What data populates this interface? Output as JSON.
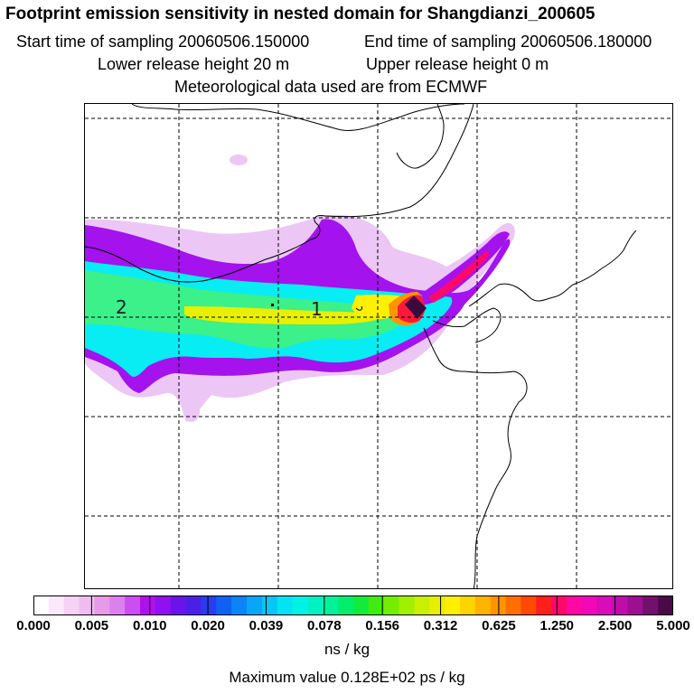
{
  "header": {
    "title": "Footprint emission sensitivity in nested domain for Shangdianzi_200605",
    "start_time": "Start time of sampling 20060506.150000",
    "end_time": "End time of sampling 20060506.180000",
    "lower_height": "Lower release height   20 m",
    "upper_height": "Upper release height    0 m",
    "met_data": "Meteorological data used are from ECMWF"
  },
  "map": {
    "labels": [
      "2",
      "1"
    ]
  },
  "colorbar": {
    "ticks": [
      "0.000",
      "0.005",
      "0.010",
      "0.020",
      "0.039",
      "0.078",
      "0.156",
      "0.312",
      "0.625",
      "1.250",
      "2.500",
      "5.000"
    ],
    "colors": [
      "#ffffff",
      "#fbe8fb",
      "#f6d2f6",
      "#f0bcf0",
      "#e79ae7",
      "#dc80ee",
      "#cc4df2",
      "#b010ec",
      "#9010f0",
      "#6a14ea",
      "#4a20e8",
      "#2a3cf0",
      "#1060f4",
      "#0a84f6",
      "#08a6f6",
      "#06c6f6",
      "#00e4f4",
      "#00f2e6",
      "#00f2c2",
      "#00f29a",
      "#00ee6c",
      "#10ec3c",
      "#40ec10",
      "#74ee00",
      "#a0f000",
      "#c8f000",
      "#e8ee00",
      "#fff000",
      "#ffd400",
      "#ffb400",
      "#ff9400",
      "#ff7000",
      "#ff4a00",
      "#ff1e1e",
      "#ff0a6a",
      "#ff08a4",
      "#f208b8",
      "#dc0ab8",
      "#c00ca8",
      "#9c0e92",
      "#72106e",
      "#4a0a48"
    ],
    "unit": "ns / kg",
    "max_value": "Maximum value  0.128E+02 ps / kg"
  },
  "colors": {
    "plume_lavender": "#ecc6f4",
    "plume_purple": "#a412ee",
    "plume_cyan": "#08ecf4",
    "plume_green": "#3cf08a",
    "plume_yellow": "#e8f000",
    "plume_red": "#ff1a3c",
    "plume_dark": "#3a0a3c"
  }
}
